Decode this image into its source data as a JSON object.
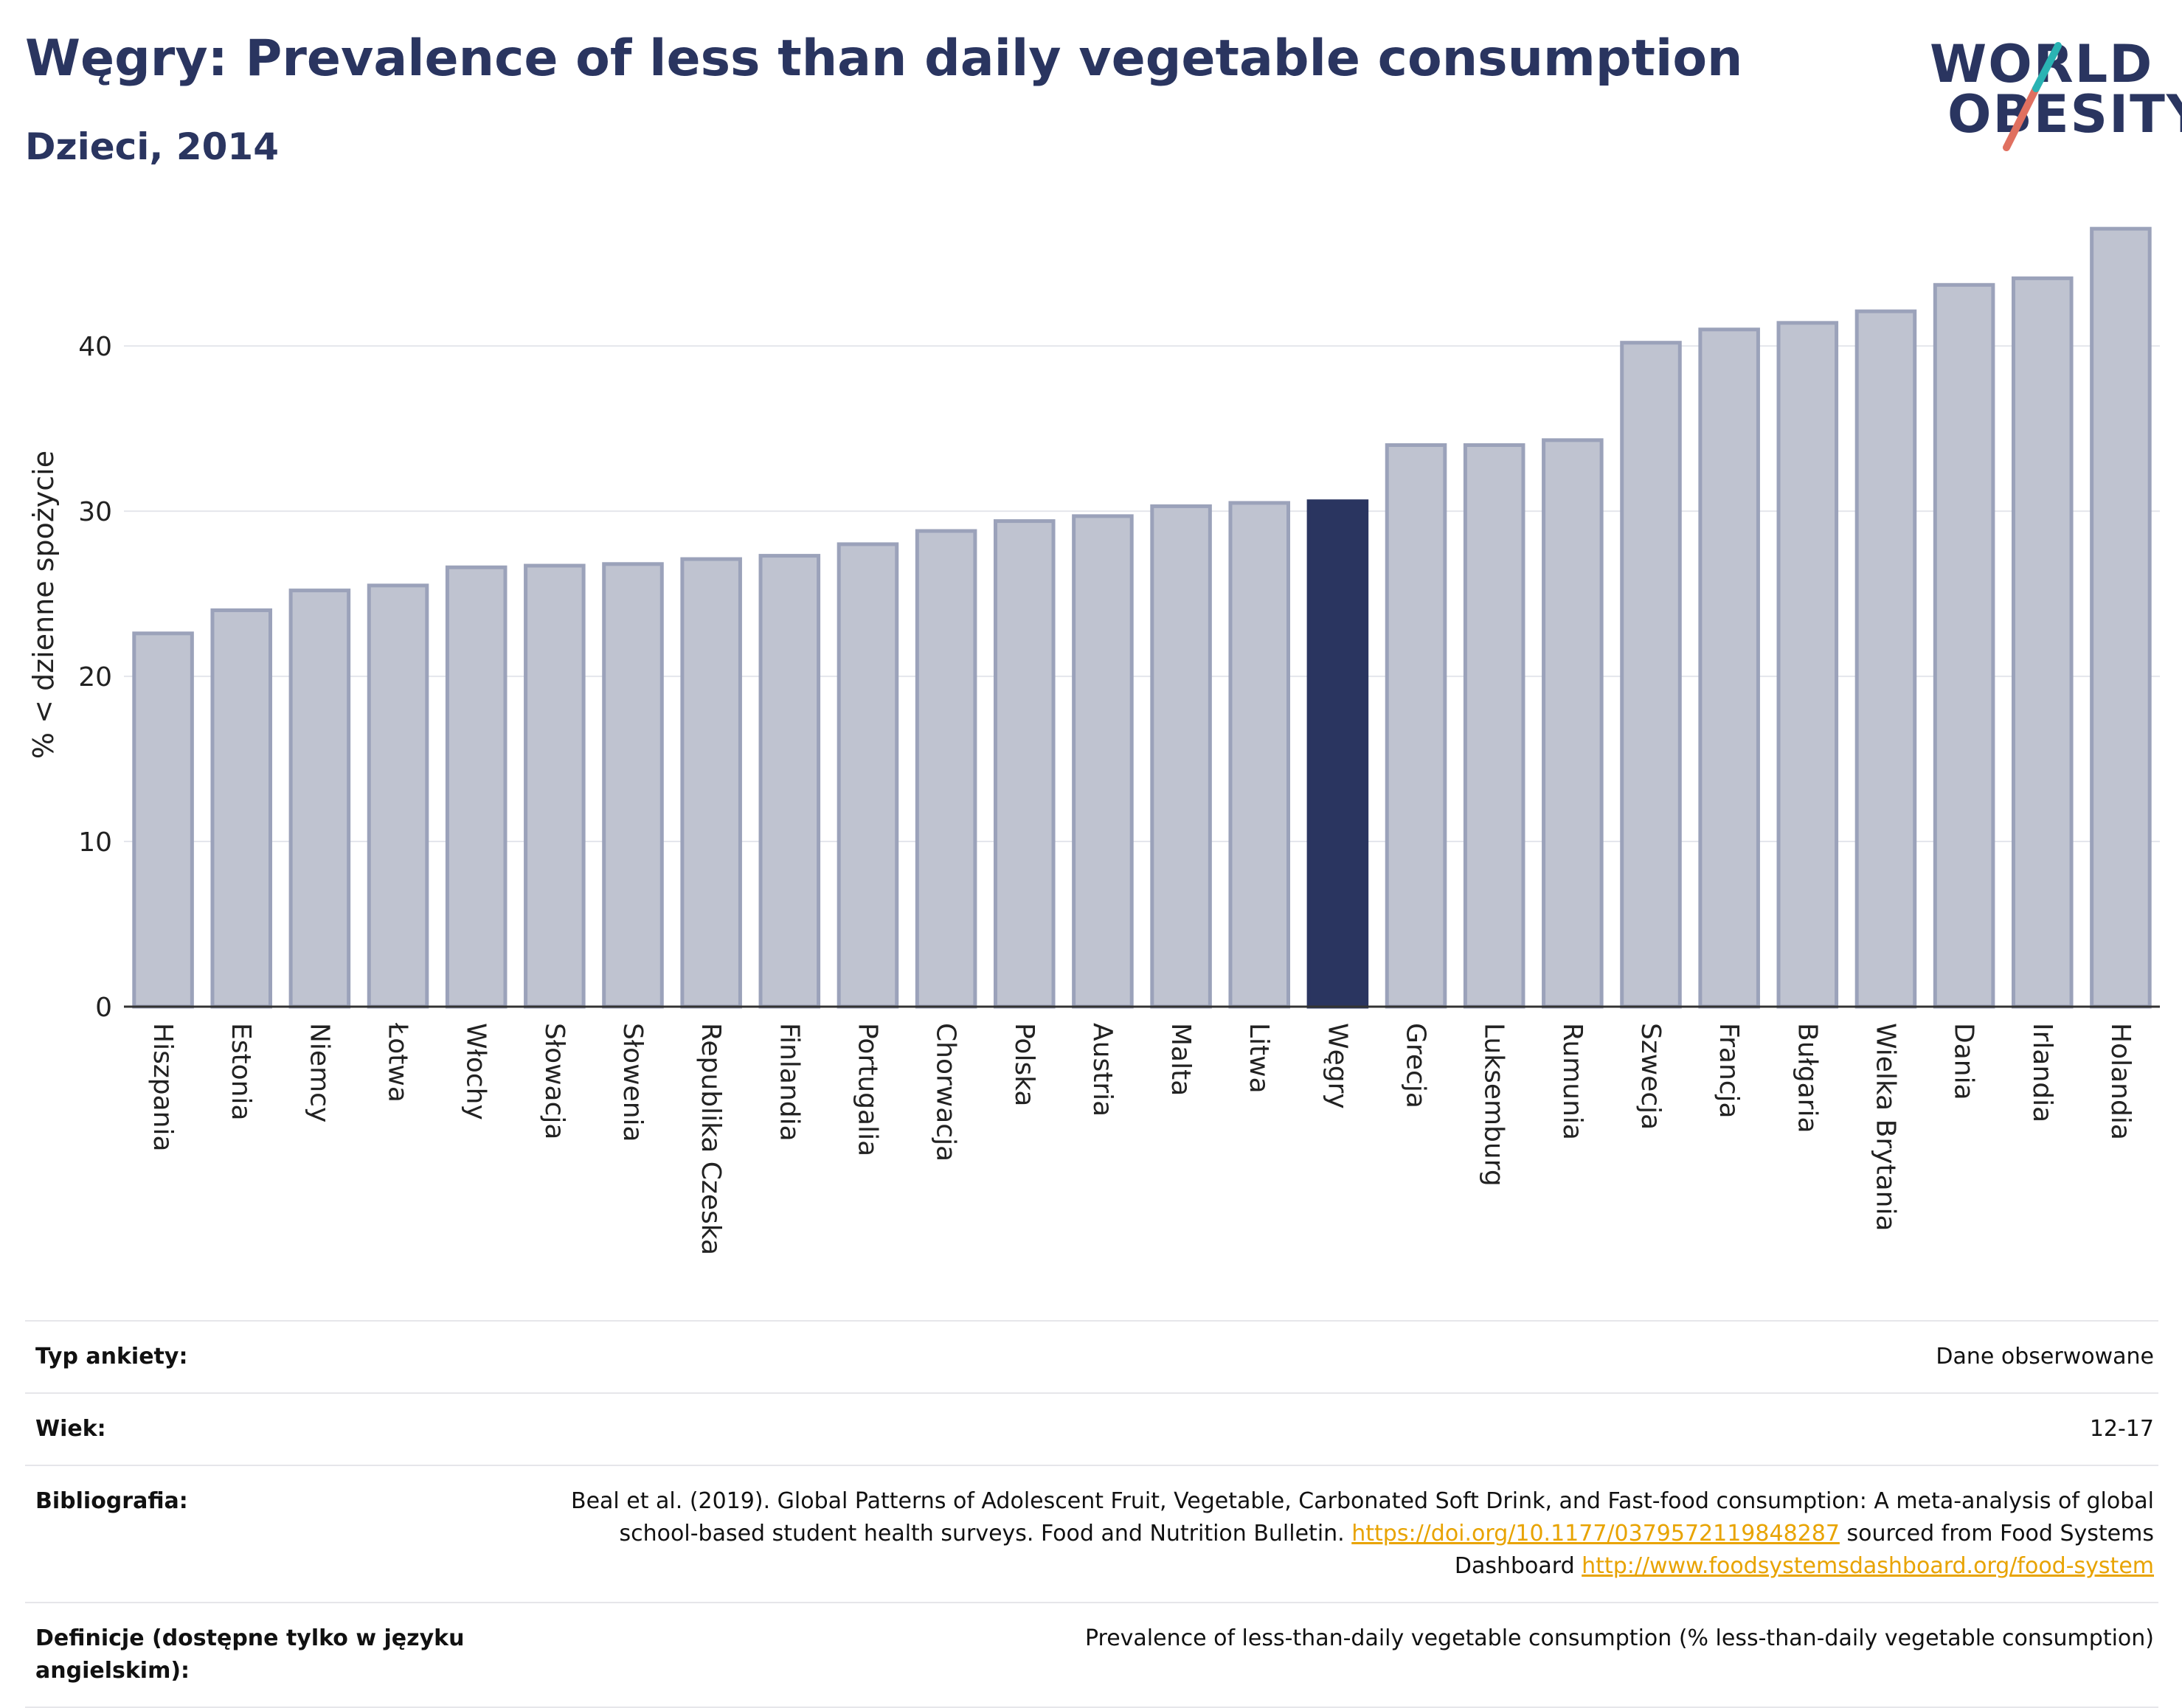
{
  "title": "Węgry: Prevalence of less than daily vegetable consumption",
  "subtitle": "Dzieci, 2014",
  "logo": {
    "line1": "WORLD",
    "line2": "OBESITY",
    "accent_colors": [
      "#e07060",
      "#2ab3b3"
    ]
  },
  "chart_data": {
    "type": "bar",
    "categories": [
      "Hiszpania",
      "Estonia",
      "Niemcy",
      "Łotwa",
      "Włochy",
      "Słowacja",
      "Słowenia",
      "Republika Czeska",
      "Finlandia",
      "Portugalia",
      "Chorwacja",
      "Polska",
      "Austria",
      "Malta",
      "Litwa",
      "Węgry",
      "Grecja",
      "Luksemburg",
      "Rumunia",
      "Szwecja",
      "Francja",
      "Bułgaria",
      "Wielka Brytania",
      "Dania",
      "Irlandia",
      "Holandia"
    ],
    "values": [
      22.6,
      24.0,
      25.2,
      25.5,
      26.6,
      26.7,
      26.8,
      27.1,
      27.3,
      28.0,
      28.8,
      29.4,
      29.7,
      30.3,
      30.5,
      30.6,
      34.0,
      34.0,
      34.3,
      40.2,
      41.0,
      41.4,
      42.1,
      43.7,
      44.1,
      47.1
    ],
    "highlight": "Węgry",
    "ylabel": "% < dzienne spożycie",
    "ylim": [
      0,
      48
    ],
    "yticks": [
      0,
      10,
      20,
      30,
      40
    ],
    "grid": true,
    "colors": {
      "bar": "#bfc3d0",
      "bar_edge": "#9ba2ba",
      "highlight": "#2a3560"
    }
  },
  "meta": [
    {
      "label": "Typ ankiety:",
      "value": "Dane obserwowane"
    },
    {
      "label": "Wiek:",
      "value": "12-17"
    },
    {
      "label": "Bibliografia:",
      "value_parts": [
        "Beal et al. (2019). Global Patterns of Adolescent Fruit, Vegetable, Carbonated Soft Drink, and Fast-food consumption: A meta-analysis of global school-based student health surveys. Food and Nutrition Bulletin. ",
        "https://doi.org/10.1177/0379572119848287",
        " sourced from Food Systems Dashboard ",
        "http://www.foodsystemsdashboard.org/food-system"
      ]
    },
    {
      "label": "Definicje (dostępne tylko w języku angielskim):",
      "value": "Prevalence of less-than-daily vegetable consumption (% less-than-daily vegetable consumption)"
    }
  ]
}
